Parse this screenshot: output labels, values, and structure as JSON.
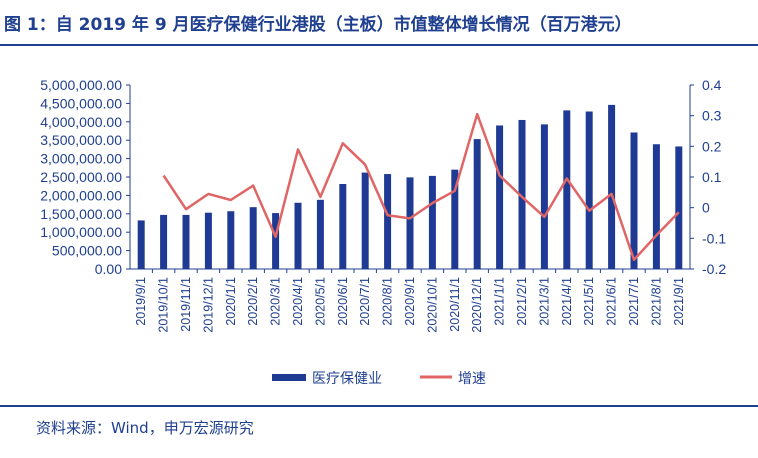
{
  "title": "图 1：自 2019 年 9 月医疗保健行业港股（主板）市值整体增长情况（百万港元）",
  "source": "资料来源：Wind，申万宏源研究",
  "colors": {
    "bar": "#1f3a93",
    "line": "#e06666",
    "axis": "#1f3f8f",
    "text": "#1f3f8f"
  },
  "chart_data": {
    "type": "bar",
    "categories": [
      "2019/9/1",
      "2019/10/1",
      "2019/11/1",
      "2019/12/1",
      "2020/1/1",
      "2020/2/1",
      "2020/3/1",
      "2020/4/1",
      "2020/5/1",
      "2020/6/1",
      "2020/7/1",
      "2020/8/1",
      "2020/9/1",
      "2020/10/1",
      "2020/11/1",
      "2020/12/1",
      "2021/1/1",
      "2021/2/1",
      "2021/3/1",
      "2021/4/1",
      "2021/5/1",
      "2021/6/1",
      "2021/7/1",
      "2021/8/1",
      "2021/9/1"
    ],
    "series": [
      {
        "name": "医疗保健业",
        "type": "bar",
        "axis": "left",
        "values": [
          1320000,
          1470000,
          1470000,
          1530000,
          1570000,
          1680000,
          1520000,
          1800000,
          1880000,
          2310000,
          2620000,
          2580000,
          2490000,
          2530000,
          2700000,
          3530000,
          3900000,
          4050000,
          3930000,
          4310000,
          4280000,
          4460000,
          3710000,
          3390000,
          3330000
        ]
      },
      {
        "name": "增速",
        "type": "line",
        "axis": "right",
        "values": [
          null,
          0.105,
          -0.005,
          0.045,
          0.025,
          0.072,
          -0.095,
          0.19,
          0.035,
          0.21,
          0.14,
          -0.025,
          -0.035,
          0.015,
          0.055,
          0.305,
          0.105,
          0.035,
          -0.03,
          0.095,
          -0.01,
          0.045,
          -0.17,
          -0.09,
          -0.015
        ]
      }
    ],
    "yLeft": {
      "min": 0,
      "max": 5000000,
      "step": 500000,
      "ticks": [
        "0.00",
        "500,000.00",
        "1,000,000.00",
        "1,500,000.00",
        "2,000,000.00",
        "2,500,000.00",
        "3,000,000.00",
        "3,500,000.00",
        "4,000,000.00",
        "4,500,000.00",
        "5,000,000.00"
      ]
    },
    "yRight": {
      "min": -0.2,
      "max": 0.4,
      "step": 0.1,
      "ticks": [
        "-0.2",
        "-0.1",
        "0",
        "0.1",
        "0.2",
        "0.3",
        "0.4"
      ]
    },
    "legend_position": "bottom",
    "grid": false
  }
}
